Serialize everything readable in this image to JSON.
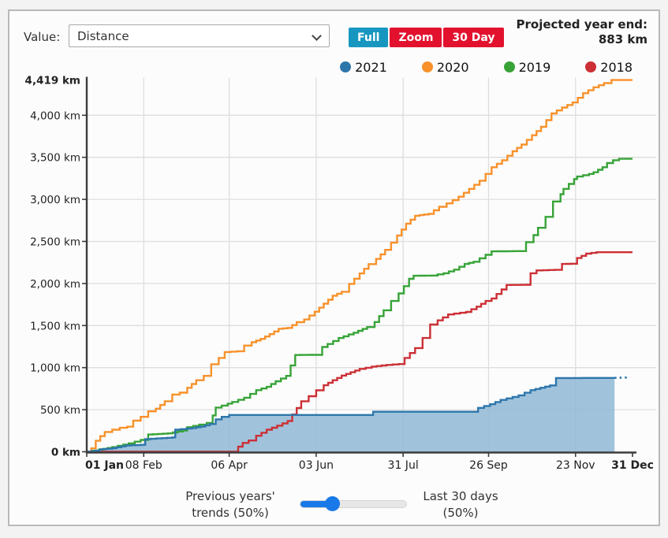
{
  "header": {
    "value_label": "Value:",
    "value_select": {
      "selected": "Distance"
    },
    "range_buttons": [
      {
        "label": "Full",
        "active": true
      },
      {
        "label": "Zoom",
        "active": false
      },
      {
        "label": "30 Day",
        "active": false
      }
    ],
    "projected": {
      "line1": "Projected year end:",
      "line2": "883 km"
    }
  },
  "colors": {
    "tab_active": "#1797c0",
    "tab_inactive": "#e2122f",
    "slider_accent": "#1a79e9",
    "axis": "#3c3c3c",
    "grid": "#dedede"
  },
  "legend": [
    {
      "label": "2021",
      "color": "#2d76ab"
    },
    {
      "label": "2020",
      "color": "#f8912a"
    },
    {
      "label": "2019",
      "color": "#37a337"
    },
    {
      "label": "2018",
      "color": "#cc2f35"
    }
  ],
  "chart_data": {
    "type": "line",
    "variant": "cumulative-step",
    "title": "",
    "xlabel": "",
    "ylabel": "",
    "xlim_days": [
      0,
      364
    ],
    "ylim": [
      0,
      4419
    ],
    "grid": true,
    "legend_position": "top-right",
    "y_ticks": [
      {
        "value": 0,
        "label": "0 km",
        "bold": true
      },
      {
        "value": 500,
        "label": "500 km",
        "bold": false
      },
      {
        "value": 1000,
        "label": "1,000 km",
        "bold": false
      },
      {
        "value": 1500,
        "label": "1,500 km",
        "bold": false
      },
      {
        "value": 2000,
        "label": "2,000 km",
        "bold": false
      },
      {
        "value": 2500,
        "label": "2,500 km",
        "bold": false
      },
      {
        "value": 3000,
        "label": "3,000 km",
        "bold": false
      },
      {
        "value": 3500,
        "label": "3,500 km",
        "bold": false
      },
      {
        "value": 4000,
        "label": "4,000 km",
        "bold": false
      },
      {
        "value": 4419,
        "label": "4,419 km",
        "bold": true
      }
    ],
    "x_ticks": [
      {
        "day": 0,
        "label": "01 Jan",
        "bold": true
      },
      {
        "day": 38,
        "label": "08 Feb",
        "bold": false
      },
      {
        "day": 95,
        "label": "06 Apr",
        "bold": false
      },
      {
        "day": 153,
        "label": "03 Jun",
        "bold": false
      },
      {
        "day": 211,
        "label": "31 Jul",
        "bold": false
      },
      {
        "day": 268,
        "label": "26 Sep",
        "bold": false
      },
      {
        "day": 326,
        "label": "23 Nov",
        "bold": false
      },
      {
        "day": 364,
        "label": "31 Dec",
        "bold": true
      }
    ],
    "series": [
      {
        "name": "2021",
        "color": "#2d76ab",
        "area_fill": "#93b9d6",
        "area_opacity": 0.88,
        "points": [
          [
            0,
            0
          ],
          [
            6,
            15
          ],
          [
            9,
            30
          ],
          [
            17,
            42
          ],
          [
            26,
            75
          ],
          [
            36,
            82
          ],
          [
            39,
            150
          ],
          [
            50,
            162
          ],
          [
            57,
            170
          ],
          [
            59,
            262
          ],
          [
            70,
            282
          ],
          [
            76,
            300
          ],
          [
            82,
            330
          ],
          [
            86,
            385
          ],
          [
            90,
            415
          ],
          [
            95,
            437
          ],
          [
            188,
            437
          ],
          [
            191,
            476
          ],
          [
            258,
            476
          ],
          [
            261,
            522
          ],
          [
            269,
            566
          ],
          [
            276,
            616
          ],
          [
            288,
            670
          ],
          [
            296,
            732
          ],
          [
            309,
            788
          ],
          [
            313,
            876
          ],
          [
            352,
            878
          ]
        ],
        "projection_dotted": [
          [
            352,
            878
          ],
          [
            362,
            883
          ]
        ]
      },
      {
        "name": "2020",
        "color": "#f8912a",
        "points": [
          [
            0,
            0
          ],
          [
            3,
            40
          ],
          [
            6,
            130
          ],
          [
            9,
            185
          ],
          [
            12,
            235
          ],
          [
            17,
            262
          ],
          [
            22,
            285
          ],
          [
            27,
            298
          ],
          [
            31,
            370
          ],
          [
            36,
            415
          ],
          [
            41,
            480
          ],
          [
            46,
            512
          ],
          [
            52,
            600
          ],
          [
            57,
            680
          ],
          [
            62,
            702
          ],
          [
            67,
            760
          ],
          [
            73,
            850
          ],
          [
            78,
            902
          ],
          [
            83,
            1040
          ],
          [
            88,
            1115
          ],
          [
            92,
            1185
          ],
          [
            100,
            1195
          ],
          [
            105,
            1262
          ],
          [
            110,
            1302
          ],
          [
            116,
            1342
          ],
          [
            122,
            1398
          ],
          [
            128,
            1462
          ],
          [
            134,
            1472
          ],
          [
            140,
            1540
          ],
          [
            145,
            1572
          ],
          [
            152,
            1665
          ],
          [
            158,
            1760
          ],
          [
            164,
            1855
          ],
          [
            170,
            1902
          ],
          [
            175,
            1995
          ],
          [
            182,
            2120
          ],
          [
            188,
            2230
          ],
          [
            193,
            2292
          ],
          [
            199,
            2400
          ],
          [
            207,
            2570
          ],
          [
            213,
            2712
          ],
          [
            219,
            2805
          ],
          [
            228,
            2828
          ],
          [
            235,
            2912
          ],
          [
            240,
            2952
          ],
          [
            248,
            3032
          ],
          [
            255,
            3125
          ],
          [
            262,
            3222
          ],
          [
            270,
            3382
          ],
          [
            277,
            3465
          ],
          [
            284,
            3572
          ],
          [
            290,
            3652
          ],
          [
            297,
            3762
          ],
          [
            303,
            3862
          ],
          [
            310,
            4022
          ],
          [
            317,
            4092
          ],
          [
            324,
            4152
          ],
          [
            331,
            4262
          ],
          [
            338,
            4332
          ],
          [
            345,
            4382
          ],
          [
            350,
            4419
          ],
          [
            364,
            4419
          ]
        ]
      },
      {
        "name": "2019",
        "color": "#37a337",
        "points": [
          [
            0,
            0
          ],
          [
            8,
            25
          ],
          [
            17,
            55
          ],
          [
            28,
            100
          ],
          [
            36,
            140
          ],
          [
            41,
            205
          ],
          [
            54,
            218
          ],
          [
            64,
            252
          ],
          [
            67,
            292
          ],
          [
            75,
            322
          ],
          [
            80,
            342
          ],
          [
            84,
            432
          ],
          [
            86,
            525
          ],
          [
            94,
            572
          ],
          [
            97,
            592
          ],
          [
            105,
            642
          ],
          [
            113,
            732
          ],
          [
            120,
            772
          ],
          [
            126,
            838
          ],
          [
            133,
            902
          ],
          [
            139,
            1150
          ],
          [
            152,
            1152
          ],
          [
            157,
            1245
          ],
          [
            168,
            1352
          ],
          [
            178,
            1415
          ],
          [
            187,
            1482
          ],
          [
            192,
            1542
          ],
          [
            198,
            1682
          ],
          [
            203,
            1792
          ],
          [
            208,
            1882
          ],
          [
            215,
            2055
          ],
          [
            218,
            2092
          ],
          [
            230,
            2095
          ],
          [
            238,
            2122
          ],
          [
            245,
            2165
          ],
          [
            252,
            2232
          ],
          [
            258,
            2258
          ],
          [
            270,
            2382
          ],
          [
            288,
            2385
          ],
          [
            293,
            2492
          ],
          [
            298,
            2575
          ],
          [
            301,
            2662
          ],
          [
            306,
            2792
          ],
          [
            311,
            2975
          ],
          [
            316,
            3062
          ],
          [
            318,
            3125
          ],
          [
            325,
            3242
          ],
          [
            327,
            3272
          ],
          [
            335,
            3302
          ],
          [
            338,
            3322
          ],
          [
            344,
            3382
          ],
          [
            347,
            3432
          ],
          [
            351,
            3465
          ],
          [
            355,
            3482
          ],
          [
            364,
            3482
          ]
        ]
      },
      {
        "name": "2018",
        "color": "#cc2f35",
        "points": [
          [
            0,
            0
          ],
          [
            96,
            0
          ],
          [
            101,
            60
          ],
          [
            104,
            105
          ],
          [
            108,
            134
          ],
          [
            113,
            190
          ],
          [
            120,
            262
          ],
          [
            127,
            310
          ],
          [
            134,
            365
          ],
          [
            140,
            520
          ],
          [
            143,
            600
          ],
          [
            148,
            660
          ],
          [
            153,
            730
          ],
          [
            158,
            790
          ],
          [
            164,
            850
          ],
          [
            170,
            905
          ],
          [
            176,
            945
          ],
          [
            182,
            985
          ],
          [
            190,
            1012
          ],
          [
            200,
            1032
          ],
          [
            208,
            1042
          ],
          [
            212,
            1115
          ],
          [
            219,
            1232
          ],
          [
            224,
            1352
          ],
          [
            229,
            1512
          ],
          [
            234,
            1562
          ],
          [
            241,
            1632
          ],
          [
            253,
            1662
          ],
          [
            260,
            1725
          ],
          [
            266,
            1792
          ],
          [
            270,
            1822
          ],
          [
            280,
            1982
          ],
          [
            293,
            1985
          ],
          [
            296,
            2122
          ],
          [
            300,
            2155
          ],
          [
            312,
            2162
          ],
          [
            317,
            2232
          ],
          [
            323,
            2235
          ],
          [
            327,
            2302
          ],
          [
            333,
            2355
          ],
          [
            340,
            2372
          ],
          [
            364,
            2372
          ]
        ]
      }
    ]
  },
  "footer": {
    "left_label_line1": "Previous years'",
    "left_label_line2": "trends (50%)",
    "right_label_line1": "Last 30 days",
    "right_label_line2": "(50%)",
    "slider_position_percent": 30
  }
}
